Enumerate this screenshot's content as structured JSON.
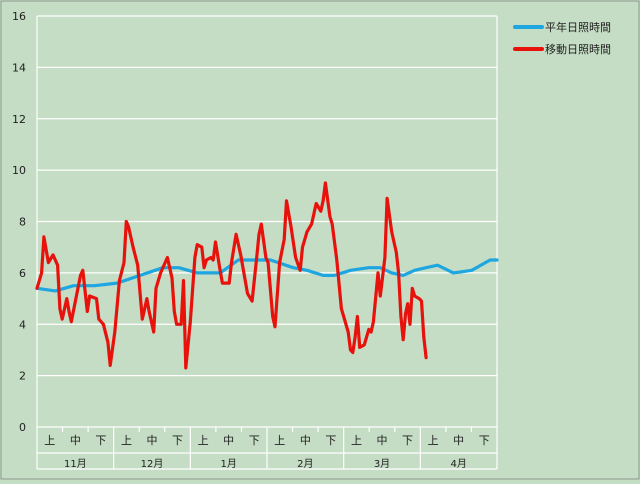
{
  "chart_data": {
    "type": "line",
    "ylim": [
      0,
      16
    ],
    "y_ticks": [
      "0",
      "2",
      "4",
      "6",
      "8",
      "10",
      "12",
      "14",
      "16"
    ],
    "grid": "horizontal",
    "legend_position": "top-right",
    "months": [
      "11月",
      "12月",
      "1月",
      "2月",
      "3月",
      "4月"
    ],
    "thirds": [
      "上",
      "中",
      "下"
    ],
    "series": [
      {
        "name": "平年日照時間",
        "color": "#1ea6e0",
        "knots": [
          [
            0,
            5.4
          ],
          [
            8,
            5.3
          ],
          [
            16,
            5.5
          ],
          [
            25,
            5.5
          ],
          [
            35,
            5.6
          ],
          [
            45,
            5.9
          ],
          [
            55,
            6.2
          ],
          [
            62,
            6.2
          ],
          [
            70,
            6.0
          ],
          [
            80,
            6.0
          ],
          [
            88,
            6.5
          ],
          [
            102,
            6.5
          ],
          [
            112,
            6.2
          ],
          [
            118,
            6.1
          ],
          [
            125,
            5.9
          ],
          [
            130,
            5.9
          ],
          [
            137,
            6.1
          ],
          [
            145,
            6.2
          ],
          [
            150,
            6.2
          ],
          [
            155,
            6.0
          ],
          [
            160,
            5.9
          ],
          [
            165,
            6.1
          ],
          [
            170,
            6.2
          ],
          [
            175,
            6.3
          ],
          [
            182,
            6.0
          ],
          [
            190,
            6.1
          ],
          [
            198,
            6.5
          ],
          [
            201,
            6.5
          ]
        ]
      },
      {
        "name": "移動日照時間",
        "color": "#e8120c",
        "knots": [
          [
            0,
            5.4
          ],
          [
            2,
            6.0
          ],
          [
            3,
            7.4
          ],
          [
            5,
            6.4
          ],
          [
            7,
            6.7
          ],
          [
            9,
            6.3
          ],
          [
            10,
            4.6
          ],
          [
            11,
            4.2
          ],
          [
            13,
            5.0
          ],
          [
            14,
            4.5
          ],
          [
            15,
            4.1
          ],
          [
            17,
            5.0
          ],
          [
            19,
            5.9
          ],
          [
            20,
            6.1
          ],
          [
            22,
            4.5
          ],
          [
            23,
            5.1
          ],
          [
            26,
            5.0
          ],
          [
            27,
            4.2
          ],
          [
            29,
            4.0
          ],
          [
            31,
            3.3
          ],
          [
            32,
            2.4
          ],
          [
            34,
            3.7
          ],
          [
            36,
            5.7
          ],
          [
            38,
            6.4
          ],
          [
            39,
            8.0
          ],
          [
            40,
            7.8
          ],
          [
            42,
            7.0
          ],
          [
            44,
            6.3
          ],
          [
            46,
            4.2
          ],
          [
            48,
            5.0
          ],
          [
            49,
            4.5
          ],
          [
            51,
            3.7
          ],
          [
            52,
            5.4
          ],
          [
            54,
            6.0
          ],
          [
            57,
            6.6
          ],
          [
            59,
            5.8
          ],
          [
            60,
            4.5
          ],
          [
            61,
            4.0
          ],
          [
            63,
            4.0
          ],
          [
            64,
            5.7
          ],
          [
            65,
            2.3
          ],
          [
            67,
            4.1
          ],
          [
            69,
            6.6
          ],
          [
            70,
            7.1
          ],
          [
            72,
            7.0
          ],
          [
            73,
            6.2
          ],
          [
            74,
            6.5
          ],
          [
            76,
            6.6
          ],
          [
            77,
            6.5
          ],
          [
            78,
            7.2
          ],
          [
            80,
            6.1
          ],
          [
            81,
            5.6
          ],
          [
            84,
            5.6
          ],
          [
            85,
            6.4
          ],
          [
            87,
            7.5
          ],
          [
            89,
            6.7
          ],
          [
            92,
            5.2
          ],
          [
            94,
            4.9
          ],
          [
            96,
            6.6
          ],
          [
            97,
            7.5
          ],
          [
            98,
            7.9
          ],
          [
            100,
            6.6
          ],
          [
            101,
            6.4
          ],
          [
            103,
            4.3
          ],
          [
            104,
            3.9
          ],
          [
            106,
            6.4
          ],
          [
            108,
            7.3
          ],
          [
            109,
            8.8
          ],
          [
            111,
            7.8
          ],
          [
            113,
            6.6
          ],
          [
            115,
            6.1
          ],
          [
            116,
            7.0
          ],
          [
            118,
            7.6
          ],
          [
            120,
            7.9
          ],
          [
            121,
            8.3
          ],
          [
            122,
            8.7
          ],
          [
            124,
            8.4
          ],
          [
            125,
            8.8
          ],
          [
            126,
            9.5
          ],
          [
            128,
            8.2
          ],
          [
            129,
            7.9
          ],
          [
            131,
            6.5
          ],
          [
            133,
            4.6
          ],
          [
            134,
            4.3
          ],
          [
            136,
            3.7
          ],
          [
            137,
            3.0
          ],
          [
            138,
            2.9
          ],
          [
            139,
            3.5
          ],
          [
            140,
            4.3
          ],
          [
            141,
            3.1
          ],
          [
            143,
            3.2
          ],
          [
            145,
            3.8
          ],
          [
            146,
            3.7
          ],
          [
            147,
            4.1
          ],
          [
            149,
            6.0
          ],
          [
            150,
            5.1
          ],
          [
            152,
            6.6
          ],
          [
            153,
            8.9
          ],
          [
            155,
            7.6
          ],
          [
            157,
            6.8
          ],
          [
            158,
            6.0
          ],
          [
            159,
            4.3
          ],
          [
            160,
            3.4
          ],
          [
            161,
            4.4
          ],
          [
            162,
            4.8
          ],
          [
            163,
            4.0
          ],
          [
            164,
            5.4
          ],
          [
            165,
            5.1
          ],
          [
            167,
            5.0
          ],
          [
            168,
            4.9
          ],
          [
            169,
            3.5
          ],
          [
            170,
            2.7
          ]
        ]
      }
    ]
  }
}
